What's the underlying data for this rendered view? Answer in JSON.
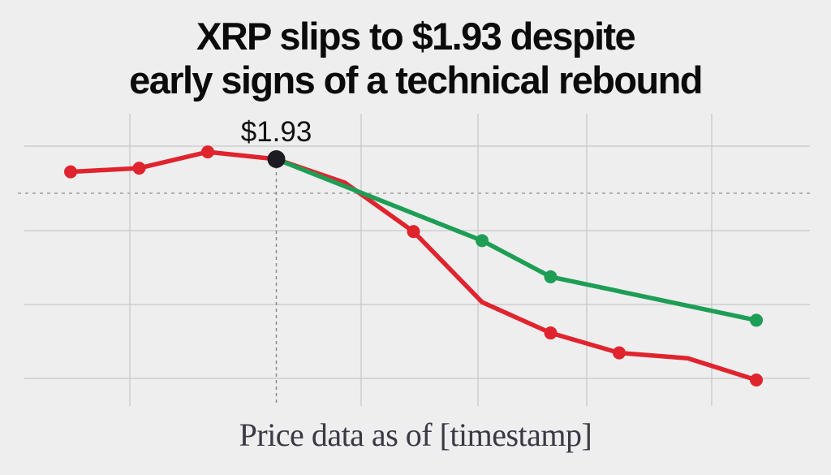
{
  "title_line1": "XRP slips to $1.93 despite",
  "title_line2": "early signs of a technical rebound",
  "caption": "Price data as of [timestamp]",
  "colors": {
    "red_series": "#e0242e",
    "green_series": "#1e9e55",
    "marker": "#1c1c22",
    "grid": "#c8c8cc",
    "background": "#eeeeef"
  },
  "chart_data": {
    "type": "line",
    "title": "XRP slips to $1.93 despite early signs of a technical rebound",
    "grid": true,
    "x": [
      0,
      1,
      2,
      3,
      4,
      5,
      6,
      7,
      8,
      9,
      10
    ],
    "series": [
      {
        "color": "#e0242e",
        "values": [
          1.86,
          1.88,
          1.97,
          1.93,
          1.8,
          1.53,
          1.14,
          0.97,
          0.86,
          0.83,
          0.71
        ],
        "points": [
          0,
          1,
          2,
          3,
          5,
          7,
          8,
          10
        ]
      },
      {
        "color": "#1e9e55",
        "values": [
          null,
          null,
          null,
          1.93,
          null,
          null,
          1.48,
          1.28,
          null,
          null,
          1.04
        ],
        "points": [
          3,
          6,
          7,
          10
        ]
      }
    ],
    "highlight": {
      "x": 3,
      "y": 1.93,
      "label": "$1.93"
    }
  }
}
